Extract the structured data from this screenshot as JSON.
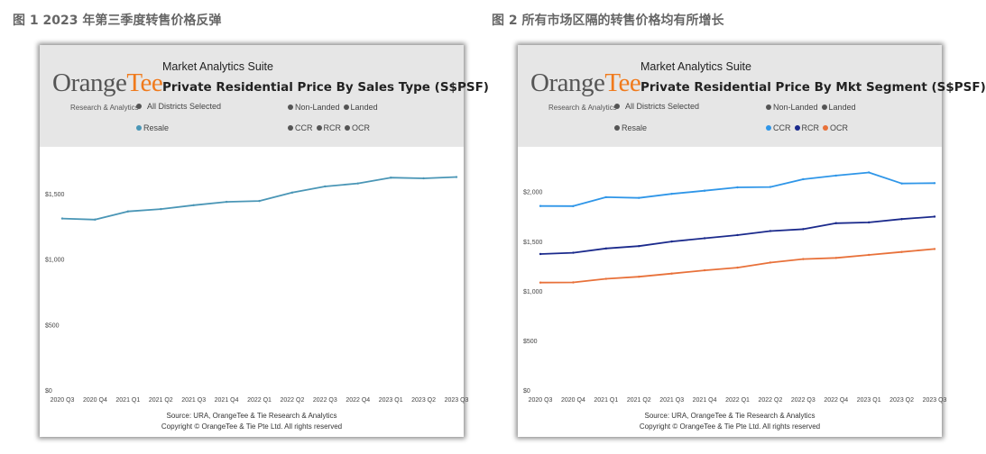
{
  "figures": [
    {
      "caption": "图 1 2023 年第三季度转售价格反弹",
      "suite": "Market Analytics Suite",
      "logo_main": "Orange",
      "logo_accent": "Tee",
      "logo_sub": "Research & Analytics",
      "filter_districts": "All Districts Selected",
      "filter_property": [
        "Non-Landed",
        "Landed"
      ],
      "filter_sale_type": [
        "Resale"
      ],
      "filter_segment": [
        "CCR",
        "RCR",
        "OCR"
      ],
      "source": "Source: URA, OrangeTee & Tie Research & Analytics",
      "copyright": "Copyright © OrangeTee & Tie Pte Ltd. All rights reserved",
      "colors": {
        "dot": "#555555",
        "resale": "#4a96b6"
      }
    },
    {
      "caption": "图 2 所有市场区隔的转售价格均有所增长",
      "suite": "Market Analytics Suite",
      "logo_main": "Orange",
      "logo_accent": "Tee",
      "logo_sub": "Research & Analytics",
      "filter_districts": "All Districts Selected",
      "filter_property": [
        "Non-Landed",
        "Landed"
      ],
      "filter_sale_type": [
        "Resale"
      ],
      "filter_segment": [
        "CCR",
        "RCR",
        "OCR"
      ],
      "source": "Source: URA, OrangeTee & Tie Research & Analytics",
      "copyright": "Copyright © OrangeTee & Tie Pte Ltd. All rights reserved",
      "colors": {
        "dot": "#555555",
        "ccr": "#2f96e8",
        "rcr": "#1b2a8c",
        "ocr": "#e8713a"
      }
    }
  ],
  "chart_data": [
    {
      "type": "line",
      "title": "Private Residential Price By Sales Type (S$PSF)",
      "categories": [
        "2020 Q3",
        "2020 Q4",
        "2021 Q1",
        "2021 Q2",
        "2021 Q3",
        "2021 Q4",
        "2022 Q1",
        "2022 Q2",
        "2022 Q3",
        "2022 Q4",
        "2023 Q1",
        "2023 Q2",
        "2023 Q3"
      ],
      "yticks": [
        "$0",
        "$500",
        "$1,000",
        "$1,500"
      ],
      "ylim": [
        0,
        1720
      ],
      "grid": false,
      "series": [
        {
          "key": "resale",
          "color": "#4a96b6",
          "values": [
            1310,
            1302,
            1364,
            1382,
            1412,
            1437,
            1444,
            1508,
            1555,
            1578,
            1622,
            1617,
            1627
          ]
        }
      ]
    },
    {
      "type": "line",
      "title": "Private Residential Price By Mkt Segment (S$PSF)",
      "categories": [
        "2020 Q3",
        "2020 Q4",
        "2021 Q1",
        "2021 Q2",
        "2021 Q3",
        "2021 Q4",
        "2022 Q1",
        "2022 Q2",
        "2022 Q3",
        "2022 Q4",
        "2023 Q1",
        "2023 Q2",
        "2023 Q3"
      ],
      "yticks": [
        "$0",
        "$500",
        "$1,000",
        "$1,500",
        "$2,000"
      ],
      "ylim": [
        0,
        2270
      ],
      "grid": false,
      "series": [
        {
          "name": "CCR",
          "color": "#2f96e8",
          "values": [
            1855,
            1854,
            1944,
            1937,
            1978,
            2009,
            2043,
            2047,
            2125,
            2162,
            2193,
            2082,
            2086
          ]
        },
        {
          "name": "RCR",
          "color": "#1b2a8c",
          "values": [
            1371,
            1384,
            1427,
            1451,
            1497,
            1530,
            1562,
            1603,
            1622,
            1682,
            1690,
            1723,
            1748
          ]
        },
        {
          "name": "OCR",
          "color": "#e8713a",
          "values": [
            1083,
            1085,
            1121,
            1142,
            1174,
            1207,
            1234,
            1285,
            1320,
            1332,
            1362,
            1392,
            1422
          ]
        }
      ]
    }
  ]
}
